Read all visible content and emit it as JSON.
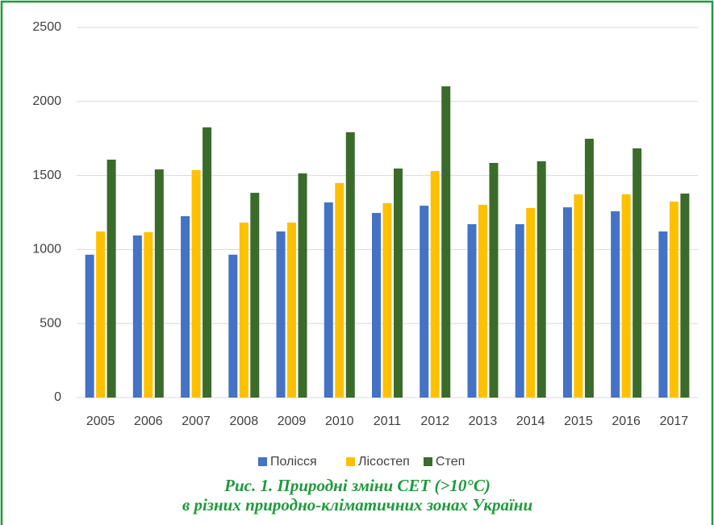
{
  "chart_data": {
    "type": "bar",
    "categories": [
      "2005",
      "2006",
      "2007",
      "2008",
      "2009",
      "2010",
      "2011",
      "2012",
      "2013",
      "2014",
      "2015",
      "2016",
      "2017"
    ],
    "series": [
      {
        "name": "Полісся",
        "color": "#4472c4",
        "values": [
          965,
          1095,
          1225,
          965,
          1122,
          1318,
          1247,
          1296,
          1171,
          1171,
          1285,
          1258,
          1122
        ]
      },
      {
        "name": "Лісостеп",
        "color": "#ffc000",
        "values": [
          1122,
          1117,
          1536,
          1182,
          1182,
          1449,
          1313,
          1530,
          1302,
          1280,
          1373,
          1373,
          1324
        ]
      },
      {
        "name": "Степ",
        "color": "#3b6b2a",
        "values": [
          1607,
          1541,
          1825,
          1383,
          1514,
          1792,
          1547,
          2102,
          1585,
          1596,
          1748,
          1683,
          1378
        ]
      }
    ],
    "ylim": [
      0,
      2500
    ],
    "yticks": [
      0,
      500,
      1000,
      1500,
      2000,
      2500
    ],
    "grid": true,
    "legend": "bottom",
    "caption": [
      "Рис. 1. Природні зміни СЕТ (>10°C)",
      "в різних природно-кліматичних зонах України"
    ]
  }
}
